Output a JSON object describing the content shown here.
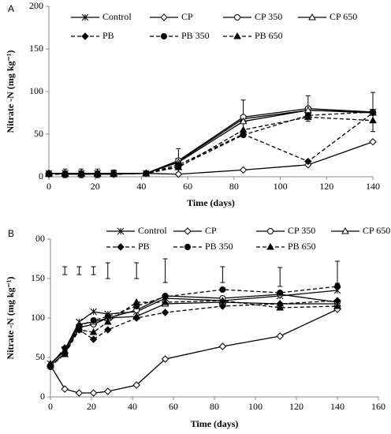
{
  "chart_data": [
    {
      "type": "line",
      "label": "A",
      "x_label": "Time (days)",
      "y_label": "Nitrate -N (mg kg⁻¹)",
      "x": [
        0,
        7,
        14,
        21,
        28,
        42,
        56,
        84,
        112,
        140
      ],
      "xlim": [
        0,
        140
      ],
      "xticks": [
        0,
        20,
        40,
        60,
        80,
        100,
        120,
        140
      ],
      "ylim": [
        0,
        200
      ],
      "yticks": [
        0,
        50,
        100,
        150,
        200
      ],
      "series": [
        {
          "name": "Control",
          "color": "#000",
          "dashed": false,
          "marker": "star",
          "values": [
            4,
            4,
            4,
            4,
            4,
            4,
            18,
            68,
            78,
            76
          ]
        },
        {
          "name": "CP",
          "color": "#000",
          "dashed": false,
          "marker": "diamond-open",
          "values": [
            4,
            3,
            3,
            3,
            3,
            4,
            3,
            8,
            14,
            41
          ]
        },
        {
          "name": "CP 350",
          "color": "#000",
          "dashed": false,
          "marker": "circle-open",
          "values": [
            4,
            4,
            4,
            4,
            4,
            4,
            19,
            70,
            80,
            76
          ]
        },
        {
          "name": "CP 650",
          "color": "#000",
          "dashed": false,
          "marker": "triangle-open",
          "values": [
            4,
            4,
            4,
            4,
            4,
            4,
            17,
            65,
            78,
            75
          ]
        },
        {
          "name": "PB",
          "color": "#000",
          "dashed": true,
          "marker": "diamond",
          "values": [
            3,
            3,
            3,
            3,
            3,
            4,
            14,
            50,
            18,
            75
          ]
        },
        {
          "name": "PB 350",
          "color": "#000",
          "dashed": true,
          "marker": "circle",
          "values": [
            4,
            3,
            3,
            3,
            3,
            4,
            12,
            49,
            72,
            76
          ]
        },
        {
          "name": "PB 650",
          "color": "#000",
          "dashed": true,
          "marker": "triangle",
          "values": [
            3,
            3,
            3,
            3,
            3,
            4,
            11,
            55,
            70,
            66
          ]
        }
      ],
      "error_bars": {
        "x": [
          7,
          14,
          21,
          28,
          56,
          84,
          112,
          140
        ],
        "values": [
          4,
          4,
          4,
          4,
          19,
          70,
          80,
          76
        ],
        "errors": [
          5,
          5,
          5,
          4,
          14,
          20,
          15,
          23
        ]
      }
    },
    {
      "type": "line",
      "label": "B",
      "x_label": "Time (days)",
      "y_label": "Nitrate -N (mg kg⁻¹)",
      "x": [
        0,
        7,
        14,
        21,
        28,
        42,
        56,
        84,
        112,
        140
      ],
      "xlim": [
        0,
        160
      ],
      "xticks": [
        0,
        20,
        40,
        60,
        80,
        100,
        120,
        140,
        160
      ],
      "ylim": [
        0,
        200
      ],
      "yticks": [
        0,
        50,
        100,
        150,
        {
          "value": 200,
          "label": "00"
        }
      ],
      "series": [
        {
          "name": "Control",
          "color": "#000",
          "dashed": false,
          "marker": "star",
          "values": [
            42,
            60,
            95,
            108,
            105,
            108,
            125,
            122,
            128,
            135
          ]
        },
        {
          "name": "CP",
          "color": "#000",
          "dashed": false,
          "marker": "diamond-open",
          "values": [
            40,
            10,
            5,
            5,
            7,
            15,
            48,
            64,
            77,
            111
          ]
        },
        {
          "name": "CP 350",
          "color": "#000",
          "dashed": false,
          "marker": "circle-open",
          "values": [
            40,
            55,
            88,
            92,
            100,
            110,
            128,
            125,
            130,
            120
          ]
        },
        {
          "name": "CP 650",
          "color": "#000",
          "dashed": false,
          "marker": "triangle-open",
          "values": [
            42,
            58,
            92,
            95,
            100,
            102,
            118,
            120,
            118,
            118
          ]
        },
        {
          "name": "PB",
          "color": "#000",
          "dashed": true,
          "marker": "diamond",
          "values": [
            40,
            62,
            85,
            73,
            85,
            100,
            107,
            115,
            118,
            122
          ]
        },
        {
          "name": "PB 350",
          "color": "#000",
          "dashed": true,
          "marker": "circle",
          "values": [
            38,
            55,
            90,
            97,
            102,
            115,
            127,
            136,
            132,
            140
          ]
        },
        {
          "name": "PB 650",
          "color": "#000",
          "dashed": true,
          "marker": "triangle",
          "values": [
            40,
            54,
            85,
            82,
            95,
            120,
            120,
            122,
            113,
            115
          ]
        }
      ],
      "error_bars": {
        "x": [
          7,
          14,
          21,
          28,
          42,
          56,
          84,
          112,
          140
        ],
        "values": [
          160,
          160,
          160,
          160,
          160,
          160,
          155,
          152,
          158
        ],
        "errors": [
          5,
          5,
          5,
          10,
          10,
          15,
          10,
          12,
          14
        ]
      }
    }
  ]
}
